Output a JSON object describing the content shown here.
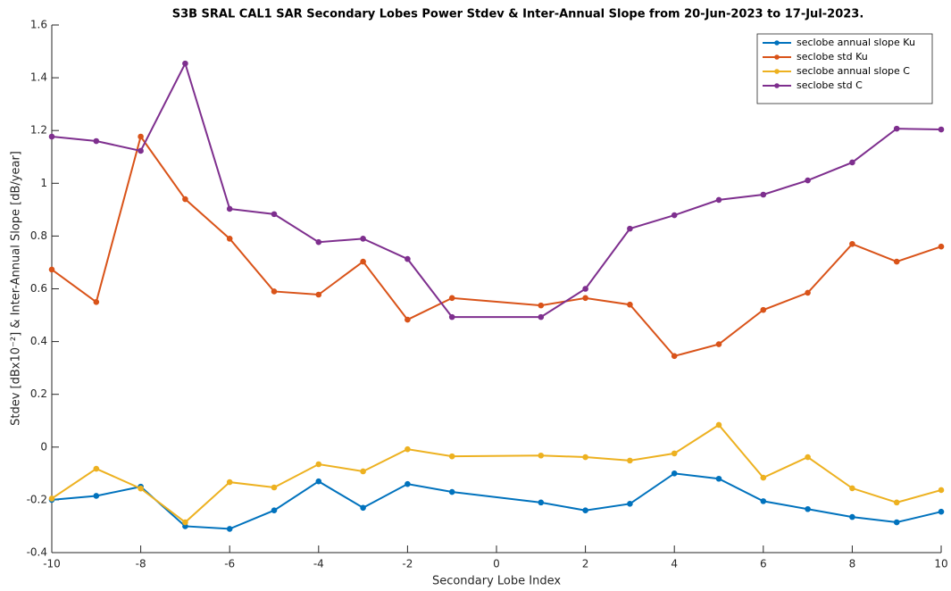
{
  "chart_data": {
    "type": "line",
    "title": "S3B SRAL CAL1 SAR Secondary Lobes Power Stdev & Inter-Annual Slope from 20-Jun-2023 to 17-Jul-2023.",
    "x_label": "Secondary Lobe Index",
    "y_label": "Stdev [dBx10⁻²] & Inter-Annual Slope [dB/year]",
    "x": [
      -10,
      -9,
      -8,
      -7,
      -6,
      -5,
      -4,
      -3,
      -2,
      -1,
      1,
      2,
      3,
      4,
      5,
      6,
      7,
      8,
      9,
      10
    ],
    "series": [
      {
        "name": "seclobe annual slope Ku",
        "color": "#0072bd",
        "values": [
          -0.2,
          -0.185,
          -0.15,
          -0.3,
          -0.31,
          -0.24,
          -0.13,
          -0.23,
          -0.14,
          -0.17,
          -0.21,
          -0.24,
          -0.215,
          -0.1,
          -0.12,
          -0.205,
          -0.235,
          -0.265,
          -0.285,
          -0.245
        ]
      },
      {
        "name": "seclobe std Ku",
        "color": "#d95319",
        "values": [
          0.673,
          0.55,
          1.177,
          0.94,
          0.79,
          0.59,
          0.578,
          0.703,
          0.483,
          0.565,
          0.537,
          0.565,
          0.54,
          0.345,
          0.39,
          0.52,
          0.585,
          0.77,
          0.703,
          0.76
        ]
      },
      {
        "name": "seclobe annual slope C",
        "color": "#edb120",
        "values": [
          -0.195,
          -0.082,
          -0.157,
          -0.285,
          -0.133,
          -0.153,
          -0.065,
          -0.092,
          -0.008,
          -0.035,
          -0.032,
          -0.038,
          -0.051,
          -0.024,
          0.084,
          -0.116,
          -0.038,
          -0.156,
          -0.21,
          -0.163
        ]
      },
      {
        "name": "seclobe std C",
        "color": "#7e2f8e",
        "values": [
          1.177,
          1.16,
          1.123,
          1.454,
          0.903,
          0.883,
          0.777,
          0.79,
          0.713,
          0.493,
          0.493,
          0.6,
          0.828,
          0.879,
          0.937,
          0.957,
          1.011,
          1.079,
          1.207,
          1.204
        ]
      }
    ],
    "xlim": [
      -10,
      10
    ],
    "xticks": [
      -10,
      -8,
      -6,
      -4,
      -2,
      0,
      2,
      4,
      6,
      8,
      10
    ],
    "ylim": [
      -0.4,
      1.6
    ],
    "yticks": [
      -0.4,
      -0.2,
      0,
      0.2,
      0.4,
      0.6,
      0.8,
      1,
      1.2,
      1.4,
      1.6
    ],
    "grid": false,
    "legend": "northeast"
  }
}
